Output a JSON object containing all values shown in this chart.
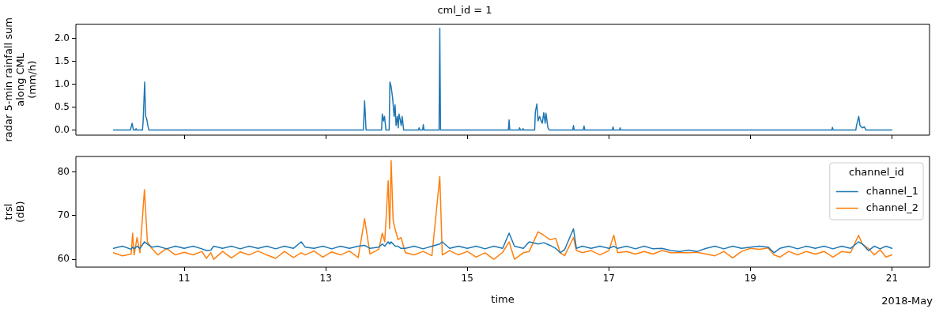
{
  "chart_data": [
    {
      "type": "line",
      "title": "cml_id = 1",
      "ylabel": "radar 5-min rainfall sum\nalong CML\n(mm/h)",
      "xlim": [
        "2018-05-09T11:15",
        "2018-05-21T12:45"
      ],
      "xticks": [
        {
          "value": "2018-05-11",
          "label": null
        },
        {
          "value": "2018-05-13",
          "label": null
        },
        {
          "value": "2018-05-15",
          "label": null
        },
        {
          "value": "2018-05-17",
          "label": null
        },
        {
          "value": "2018-05-19",
          "label": null
        },
        {
          "value": "2018-05-21",
          "label": null
        }
      ],
      "ylim": [
        -0.11,
        2.31
      ],
      "yticks": [
        {
          "value": 0,
          "label": "0.0"
        },
        {
          "value": 0.5,
          "label": "0.5"
        },
        {
          "value": 1,
          "label": "1.0"
        },
        {
          "value": 1.5,
          "label": "1.5"
        },
        {
          "value": 2,
          "label": "2.0"
        }
      ],
      "tick_labels": "y",
      "grid": false,
      "legend": false,
      "marker": "none",
      "line_style": "solid",
      "series": [
        {
          "color": "#1f77b4",
          "x": [
            "2018-05-10T00:00",
            "2018-05-10T05:45",
            "2018-05-10T06:20",
            "2018-05-10T06:45",
            "2018-05-10T07:25",
            "2018-05-10T07:40",
            "2018-05-10T07:55",
            "2018-05-10T09:50",
            "2018-05-10T10:05",
            "2018-05-10T10:35",
            "2018-05-10T10:55",
            "2018-05-10T11:15",
            "2018-05-10T11:40",
            "2018-05-10T12:00",
            "2018-05-13T12:45",
            "2018-05-13T13:10",
            "2018-05-13T13:40",
            "2018-05-13T18:55",
            "2018-05-13T19:10",
            "2018-05-13T19:35",
            "2018-05-13T19:55",
            "2018-05-13T20:25",
            "2018-05-13T21:30",
            "2018-05-13T21:45",
            "2018-05-13T22:10",
            "2018-05-13T22:40",
            "2018-05-13T23:10",
            "2018-05-13T23:30",
            "2018-05-13T23:50",
            "2018-05-14T00:15",
            "2018-05-14T00:35",
            "2018-05-14T00:50",
            "2018-05-14T01:10",
            "2018-05-14T01:35",
            "2018-05-14T01:55",
            "2018-05-14T02:25",
            "2018-05-14T07:25",
            "2018-05-14T07:40",
            "2018-05-14T07:55",
            "2018-05-14T08:50",
            "2018-05-14T09:05",
            "2018-05-14T09:20",
            "2018-05-14T14:25",
            "2018-05-14T14:40",
            "2018-05-14T14:55",
            "2018-05-15T13:55",
            "2018-05-15T14:10",
            "2018-05-15T14:25",
            "2018-05-15T17:30",
            "2018-05-15T17:45",
            "2018-05-15T18:00",
            "2018-05-15T18:40",
            "2018-05-15T18:55",
            "2018-05-15T19:10",
            "2018-05-15T22:50",
            "2018-05-15T23:05",
            "2018-05-15T23:35",
            "2018-05-16T00:00",
            "2018-05-16T00:30",
            "2018-05-16T00:55",
            "2018-05-16T01:25",
            "2018-05-16T01:55",
            "2018-05-16T02:25",
            "2018-05-16T02:40",
            "2018-05-16T03:20",
            "2018-05-16T03:50",
            "2018-05-16T11:45",
            "2018-05-16T12:00",
            "2018-05-16T12:15",
            "2018-05-16T15:20",
            "2018-05-16T15:35",
            "2018-05-16T15:50",
            "2018-05-17T01:10",
            "2018-05-17T01:25",
            "2018-05-17T01:40",
            "2018-05-17T03:35",
            "2018-05-17T03:50",
            "2018-05-17T04:05",
            "2018-05-20T03:35",
            "2018-05-20T03:50",
            "2018-05-20T04:05",
            "2018-05-20T11:45",
            "2018-05-20T12:00",
            "2018-05-20T12:45",
            "2018-05-20T13:10",
            "2018-05-20T13:55",
            "2018-05-20T14:40",
            "2018-05-20T15:10",
            "2018-05-21T00:00"
          ],
          "values": [
            0,
            0,
            0.15,
            0,
            0,
            0.03,
            0,
            0,
            0.22,
            1.05,
            0.3,
            0.25,
            0.1,
            0,
            0,
            0.64,
            0,
            0,
            0.35,
            0.2,
            0.3,
            0,
            0,
            1.05,
            0.95,
            0.7,
            0.3,
            0.55,
            0.1,
            0.3,
            0.05,
            0.35,
            0.25,
            0.1,
            0.3,
            0,
            0,
            0.05,
            0,
            0,
            0.12,
            0,
            0,
            2.22,
            0,
            0,
            0.22,
            0,
            0,
            0.05,
            0,
            0,
            0.03,
            0,
            0,
            0.4,
            0.57,
            0.2,
            0.3,
            0.22,
            0.15,
            0.38,
            0.15,
            0.37,
            0.05,
            0,
            0,
            0.1,
            0,
            0,
            0.09,
            0,
            0,
            0.07,
            0,
            0,
            0.05,
            0,
            0,
            0.06,
            0,
            0,
            0.1,
            0.3,
            0.1,
            0.05,
            0.07,
            0,
            0
          ]
        }
      ]
    },
    {
      "type": "line",
      "xlabel": "time",
      "ylabel": "trsl\n(dB)",
      "legend_title": "channel_id",
      "annotations": [
        "2018-May"
      ],
      "xlim": [
        "2018-05-09T11:15",
        "2018-05-21T12:45"
      ],
      "xticks": [
        {
          "value": "2018-05-11",
          "label": "11"
        },
        {
          "value": "2018-05-13",
          "label": "13"
        },
        {
          "value": "2018-05-15",
          "label": "15"
        },
        {
          "value": "2018-05-17",
          "label": "17"
        },
        {
          "value": "2018-05-19",
          "label": "19"
        },
        {
          "value": "2018-05-21",
          "label": "21"
        }
      ],
      "ylim": [
        58.2,
        83.6
      ],
      "yticks": [
        60,
        70,
        80
      ],
      "grid": false,
      "legend": "top right",
      "marker": "none",
      "line_style": "solid",
      "x": [
        "2018-05-10T00:00",
        "2018-05-10T03:00",
        "2018-05-10T06:00",
        "2018-05-10T06:30",
        "2018-05-10T07:00",
        "2018-05-10T08:00",
        "2018-05-10T09:00",
        "2018-05-10T10:30",
        "2018-05-10T11:30",
        "2018-05-10T13:00",
        "2018-05-10T15:00",
        "2018-05-10T18:00",
        "2018-05-10T21:00",
        "2018-05-11T00:00",
        "2018-05-11T03:00",
        "2018-05-11T06:00",
        "2018-05-11T07:30",
        "2018-05-11T09:00",
        "2018-05-11T10:00",
        "2018-05-11T13:00",
        "2018-05-11T16:00",
        "2018-05-11T19:00",
        "2018-05-11T22:00",
        "2018-05-12T01:00",
        "2018-05-12T04:00",
        "2018-05-12T07:00",
        "2018-05-12T10:00",
        "2018-05-12T13:00",
        "2018-05-12T15:40",
        "2018-05-12T17:00",
        "2018-05-12T20:00",
        "2018-05-12T23:00",
        "2018-05-13T02:00",
        "2018-05-13T05:00",
        "2018-05-13T08:00",
        "2018-05-13T11:00",
        "2018-05-13T13:10",
        "2018-05-13T15:00",
        "2018-05-13T18:00",
        "2018-05-13T19:10",
        "2018-05-13T20:00",
        "2018-05-13T21:10",
        "2018-05-13T21:40",
        "2018-05-13T22:10",
        "2018-05-13T22:50",
        "2018-05-13T23:30",
        "2018-05-14T00:30",
        "2018-05-14T01:30",
        "2018-05-14T03:00",
        "2018-05-14T06:00",
        "2018-05-14T09:00",
        "2018-05-14T12:00",
        "2018-05-14T14:40",
        "2018-05-14T15:30",
        "2018-05-14T18:00",
        "2018-05-14T21:00",
        "2018-05-15T00:00",
        "2018-05-15T03:00",
        "2018-05-15T06:00",
        "2018-05-15T09:00",
        "2018-05-15T12:00",
        "2018-05-15T14:10",
        "2018-05-15T16:00",
        "2018-05-15T19:00",
        "2018-05-15T21:00",
        "2018-05-16T00:00",
        "2018-05-16T02:00",
        "2018-05-16T04:00",
        "2018-05-16T06:00",
        "2018-05-16T07:30",
        "2018-05-16T09:00",
        "2018-05-16T12:00",
        "2018-05-16T13:00",
        "2018-05-16T15:00",
        "2018-05-16T18:00",
        "2018-05-16T21:00",
        "2018-05-17T00:00",
        "2018-05-17T01:40",
        "2018-05-17T03:00",
        "2018-05-17T06:00",
        "2018-05-17T09:00",
        "2018-05-17T12:00",
        "2018-05-17T15:00",
        "2018-05-17T18:00",
        "2018-05-17T21:00",
        "2018-05-18T00:00",
        "2018-05-18T03:00",
        "2018-05-18T06:00",
        "2018-05-18T09:00",
        "2018-05-18T12:00",
        "2018-05-18T15:00",
        "2018-05-18T18:00",
        "2018-05-18T21:00",
        "2018-05-19T00:00",
        "2018-05-19T03:00",
        "2018-05-19T06:00",
        "2018-05-19T08:00",
        "2018-05-19T10:00",
        "2018-05-19T13:00",
        "2018-05-19T16:00",
        "2018-05-19T19:00",
        "2018-05-19T22:00",
        "2018-05-20T01:00",
        "2018-05-20T04:00",
        "2018-05-20T07:00",
        "2018-05-20T10:00",
        "2018-05-20T12:40",
        "2018-05-20T14:00",
        "2018-05-20T16:00",
        "2018-05-20T18:00",
        "2018-05-20T20:00",
        "2018-05-20T22:00",
        "2018-05-21T00:00"
      ],
      "series": [
        {
          "name": "channel_1",
          "color": "#1f77b4",
          "values": [
            62.5,
            63,
            62.3,
            62.8,
            62.4,
            63,
            62.5,
            64,
            63.5,
            62.8,
            63,
            62.4,
            63,
            62.5,
            63,
            62.4,
            62,
            62.1,
            63,
            62.5,
            63,
            62.4,
            63,
            62.5,
            63,
            62.4,
            63,
            62.5,
            64,
            62.8,
            62.5,
            63,
            62.4,
            63,
            62.5,
            63,
            63.2,
            62.5,
            62.8,
            63.5,
            63,
            64,
            63.5,
            64,
            63.5,
            63,
            63,
            62.5,
            62.5,
            63,
            62.4,
            63,
            63.5,
            64,
            62.5,
            63,
            62.5,
            63,
            62.4,
            63,
            62.5,
            66,
            63,
            62.5,
            64,
            63.5,
            63.8,
            63.2,
            62.5,
            61.5,
            62.2,
            67,
            62.5,
            63,
            62.5,
            63,
            62.5,
            63,
            62.5,
            63,
            62.4,
            63,
            62.4,
            62.5,
            62,
            61.8,
            62.1,
            61.8,
            62.5,
            63,
            62.4,
            63,
            62.5,
            62.8,
            63,
            62.8,
            61.5,
            62.5,
            63,
            62.4,
            63,
            62.5,
            63,
            62.4,
            63,
            62.5,
            64,
            63.5,
            62,
            63,
            62.4,
            63,
            62.5
          ]
        },
        {
          "name": "channel_2",
          "color": "#ff7f0e",
          "values": [
            61.5,
            60.8,
            61.2,
            66,
            61,
            65,
            61.5,
            76,
            64,
            62.5,
            61,
            62.5,
            61,
            61.6,
            61,
            61.8,
            60.2,
            61.5,
            60,
            61.8,
            60.3,
            61.7,
            61,
            61.9,
            61,
            60.2,
            61.8,
            60.4,
            61.5,
            61,
            61.9,
            60.5,
            61.7,
            61,
            61.9,
            60.4,
            69.3,
            61.2,
            62.3,
            66,
            64,
            78,
            67,
            82.7,
            69,
            67,
            64.5,
            65,
            61.5,
            61,
            61.8,
            60.8,
            79,
            61,
            62,
            61,
            61.8,
            60.5,
            61.5,
            60,
            61.6,
            64,
            60,
            61.5,
            61.8,
            66.3,
            65.5,
            64.5,
            64.8,
            61.5,
            60.8,
            65,
            62,
            61.5,
            62,
            61,
            62,
            65.5,
            61.5,
            61.8,
            61.2,
            61.8,
            61.2,
            62,
            61.5,
            61.5,
            61.5,
            61.6,
            61.2,
            60.8,
            61.8,
            60.3,
            61.8,
            62.5,
            62.3,
            62.6,
            61,
            60.5,
            61.8,
            61,
            61.8,
            61.2,
            61.8,
            60.5,
            61.8,
            61.5,
            65.5,
            63.5,
            62.5,
            61,
            62.2,
            60.5,
            61
          ]
        }
      ]
    }
  ]
}
